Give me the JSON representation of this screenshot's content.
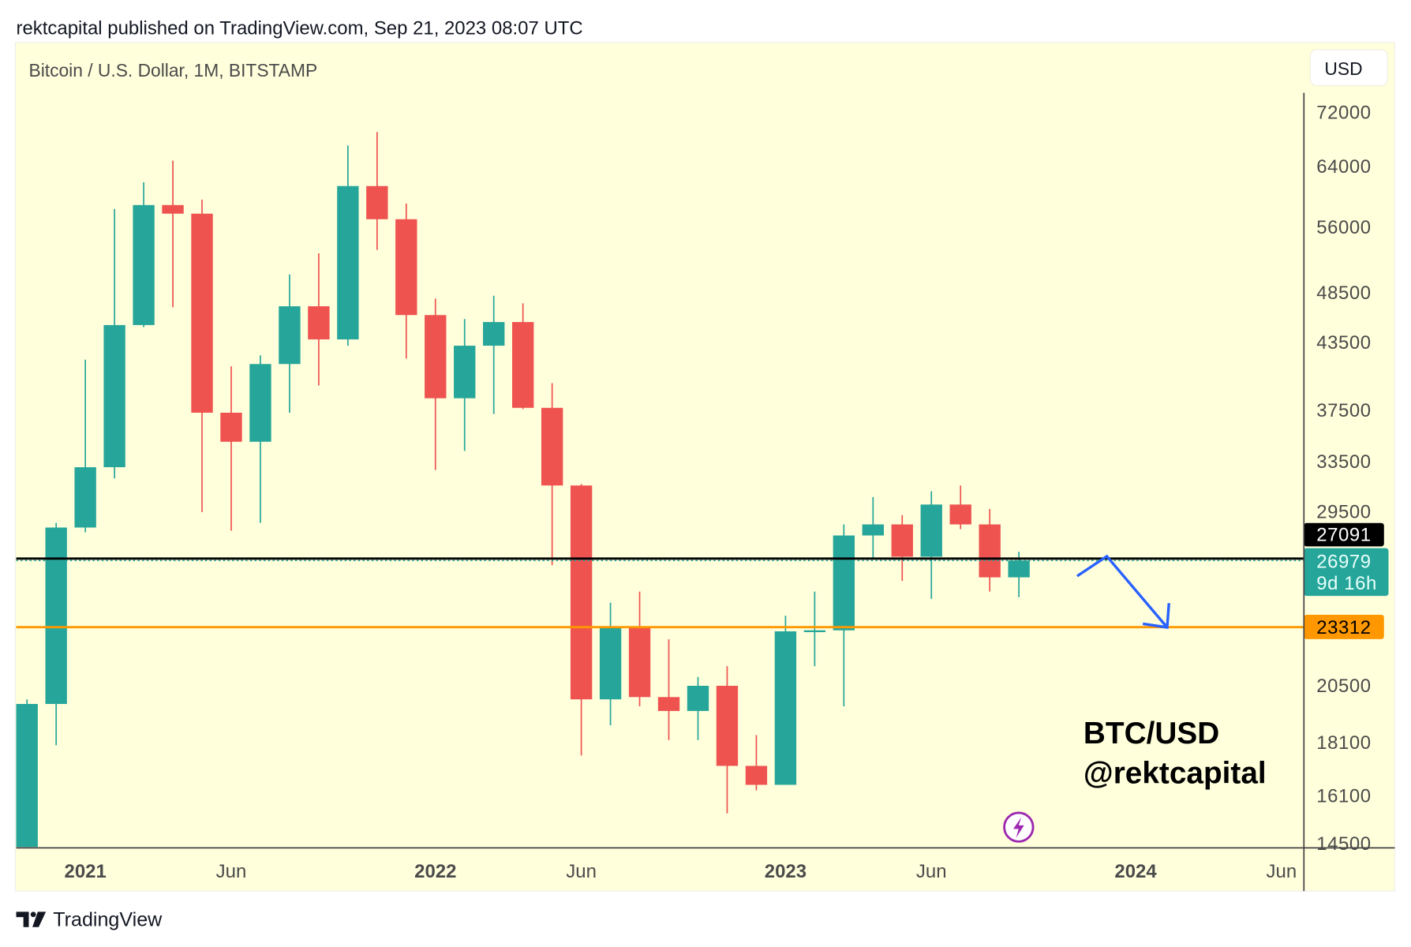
{
  "header": {
    "published": "rektcapital published on TradingView.com, Sep 21, 2023 08:07 UTC"
  },
  "chart_header": {
    "symbol": "Bitcoin / U.S. Dollar, 1M, BITSTAMP",
    "currency_button": "USD"
  },
  "footer": {
    "brand": "TradingView"
  },
  "annotation": {
    "line1": "BTC/USD",
    "line2": "@rektcapital"
  },
  "icons": {
    "logo": "tradingview-logo-icon",
    "event": "lightning-bolt-icon"
  },
  "colors": {
    "up": "#26a69a",
    "down": "#ef5350",
    "background": "#ffffdc",
    "support": "#ff9800",
    "arrow": "#2962ff",
    "level": "#000000"
  },
  "chart_data": {
    "type": "candlestick",
    "scale": "log",
    "ylim": [
      14500,
      72000
    ],
    "y_ticks": [
      "72000",
      "64000",
      "56000",
      "48500",
      "43500",
      "37500",
      "33500",
      "29500",
      "20500",
      "18100",
      "16100",
      "14500"
    ],
    "x_ticks": [
      {
        "label": "2021",
        "month": "2021-01",
        "bold": true
      },
      {
        "label": "Jun",
        "month": "2021-06",
        "bold": false
      },
      {
        "label": "2022",
        "month": "2022-01",
        "bold": true
      },
      {
        "label": "Jun",
        "month": "2022-06",
        "bold": false
      },
      {
        "label": "2023",
        "month": "2023-01",
        "bold": true
      },
      {
        "label": "Jun",
        "month": "2023-06",
        "bold": false
      },
      {
        "label": "2024",
        "month": "2024-01",
        "bold": true
      },
      {
        "label": "Jun",
        "month": "2024-06",
        "bold": false
      }
    ],
    "candles": [
      {
        "m": "2020-11",
        "o": 13800,
        "h": 19900,
        "l": 13600,
        "c": 19700
      },
      {
        "m": "2020-12",
        "o": 19700,
        "h": 29300,
        "l": 18000,
        "c": 29000
      },
      {
        "m": "2021-01",
        "o": 29000,
        "h": 41900,
        "l": 28700,
        "c": 33100
      },
      {
        "m": "2021-02",
        "o": 33100,
        "h": 58300,
        "l": 32300,
        "c": 45200
      },
      {
        "m": "2021-03",
        "o": 45200,
        "h": 61800,
        "l": 45000,
        "c": 58800
      },
      {
        "m": "2021-04",
        "o": 58800,
        "h": 64800,
        "l": 47000,
        "c": 57700
      },
      {
        "m": "2021-05",
        "o": 57700,
        "h": 59500,
        "l": 30000,
        "c": 37300
      },
      {
        "m": "2021-06",
        "o": 37300,
        "h": 41300,
        "l": 28800,
        "c": 35000
      },
      {
        "m": "2021-07",
        "o": 35000,
        "h": 42300,
        "l": 29300,
        "c": 41500
      },
      {
        "m": "2021-08",
        "o": 41500,
        "h": 50500,
        "l": 37300,
        "c": 47100
      },
      {
        "m": "2021-09",
        "o": 47100,
        "h": 52900,
        "l": 39600,
        "c": 43800
      },
      {
        "m": "2021-10",
        "o": 43800,
        "h": 67000,
        "l": 43200,
        "c": 61300
      },
      {
        "m": "2021-11",
        "o": 61300,
        "h": 69000,
        "l": 53300,
        "c": 57000
      },
      {
        "m": "2021-12",
        "o": 57000,
        "h": 59000,
        "l": 42000,
        "c": 46200
      },
      {
        "m": "2022-01",
        "o": 46200,
        "h": 47900,
        "l": 32900,
        "c": 38500
      },
      {
        "m": "2022-02",
        "o": 38500,
        "h": 45800,
        "l": 34300,
        "c": 43200
      },
      {
        "m": "2022-03",
        "o": 43200,
        "h": 48200,
        "l": 37200,
        "c": 45500
      },
      {
        "m": "2022-04",
        "o": 45500,
        "h": 47400,
        "l": 37600,
        "c": 37700
      },
      {
        "m": "2022-05",
        "o": 37700,
        "h": 39800,
        "l": 26700,
        "c": 31800
      },
      {
        "m": "2022-06",
        "o": 31800,
        "h": 31900,
        "l": 17600,
        "c": 19900
      },
      {
        "m": "2022-07",
        "o": 19900,
        "h": 24600,
        "l": 18800,
        "c": 23300
      },
      {
        "m": "2022-08",
        "o": 23300,
        "h": 25200,
        "l": 19600,
        "c": 20000
      },
      {
        "m": "2022-09",
        "o": 20000,
        "h": 22700,
        "l": 18200,
        "c": 19400
      },
      {
        "m": "2022-10",
        "o": 19400,
        "h": 20900,
        "l": 18200,
        "c": 20500
      },
      {
        "m": "2022-11",
        "o": 20500,
        "h": 21400,
        "l": 15500,
        "c": 17200
      },
      {
        "m": "2022-12",
        "o": 17200,
        "h": 18400,
        "l": 16300,
        "c": 16500
      },
      {
        "m": "2023-01",
        "o": 16500,
        "h": 23900,
        "l": 16500,
        "c": 23100
      },
      {
        "m": "2023-02",
        "o": 23100,
        "h": 25200,
        "l": 21400,
        "c": 23150
      },
      {
        "m": "2023-03",
        "o": 23150,
        "h": 29200,
        "l": 19600,
        "c": 28500
      },
      {
        "m": "2023-04",
        "o": 28500,
        "h": 31000,
        "l": 27100,
        "c": 29200
      },
      {
        "m": "2023-05",
        "o": 29200,
        "h": 29800,
        "l": 25800,
        "c": 27200
      },
      {
        "m": "2023-06",
        "o": 27200,
        "h": 31400,
        "l": 24800,
        "c": 30500
      },
      {
        "m": "2023-07",
        "o": 30500,
        "h": 31800,
        "l": 28900,
        "c": 29200
      },
      {
        "m": "2023-08",
        "o": 29200,
        "h": 30200,
        "l": 25200,
        "c": 26000
      },
      {
        "m": "2023-09",
        "o": 26000,
        "h": 27500,
        "l": 24900,
        "c": 26979
      }
    ],
    "levels": [
      {
        "label": "27091",
        "price": 27091,
        "color": "#000000"
      },
      {
        "label": "23312",
        "price": 23312,
        "color": "#ff9800"
      }
    ],
    "last_price": {
      "label": "26979",
      "price": 26979,
      "countdown": "9d 16h",
      "color": "#26a69a"
    }
  }
}
